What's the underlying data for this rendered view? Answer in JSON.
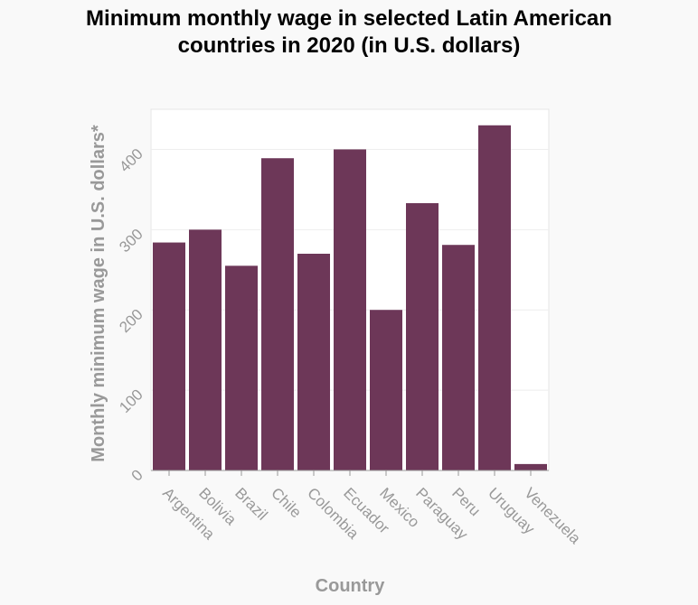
{
  "chart_data": {
    "type": "bar",
    "title_lines": [
      "Minimum monthly wage in selected Latin American",
      "countries in 2020 (in U.S. dollars)"
    ],
    "xlabel": "Country",
    "ylabel": "Monthly minimum wage in U.S. dollars*",
    "categories": [
      "Argentina",
      "Bolivia",
      "Brazil",
      "Chile",
      "Colombia",
      "Ecuador",
      "Mexico",
      "Paraguay",
      "Peru",
      "Uruguay",
      "Venezuela"
    ],
    "values": [
      284,
      300,
      255,
      389,
      270,
      400,
      200,
      333,
      281,
      430,
      8
    ],
    "ylim": [
      0,
      450
    ],
    "yticks": [
      0,
      100,
      200,
      300,
      400
    ],
    "grid": true,
    "legend": "none",
    "bar_color": "#6d3758"
  }
}
